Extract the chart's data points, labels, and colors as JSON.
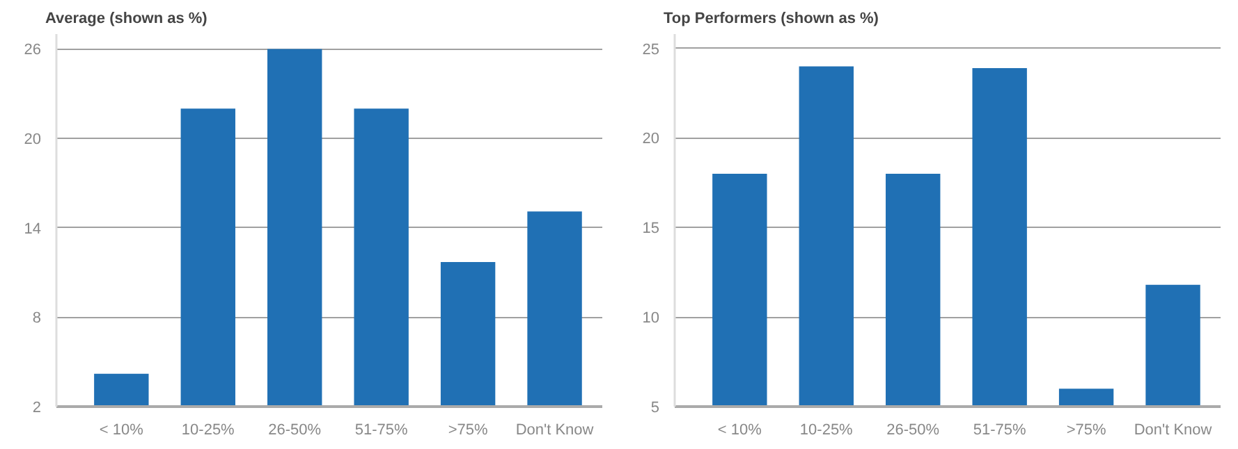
{
  "chart_data": [
    {
      "type": "bar",
      "title": "Average (shown as %)",
      "categories": [
        "< 10%",
        "10-25%",
        "26-50%",
        "51-75%",
        ">75%",
        "Don't Know"
      ],
      "values": [
        4.2,
        22,
        26,
        22,
        11.7,
        15.1
      ],
      "color": "#2070b4",
      "ylim": [
        2,
        27
      ],
      "yticks": [
        2,
        8,
        14,
        20,
        26
      ],
      "grid": "y"
    },
    {
      "type": "bar",
      "title": "Top Performers (shown as %)",
      "categories": [
        "< 10%",
        "10-25%",
        "26-50%",
        "51-75%",
        ">75%",
        "Don't Know"
      ],
      "values": [
        18,
        24,
        18,
        23.9,
        6,
        11.8
      ],
      "color": "#2070b4",
      "ylim": [
        5,
        25.8
      ],
      "yticks": [
        5,
        10,
        15,
        20,
        25
      ],
      "grid": "y"
    }
  ]
}
